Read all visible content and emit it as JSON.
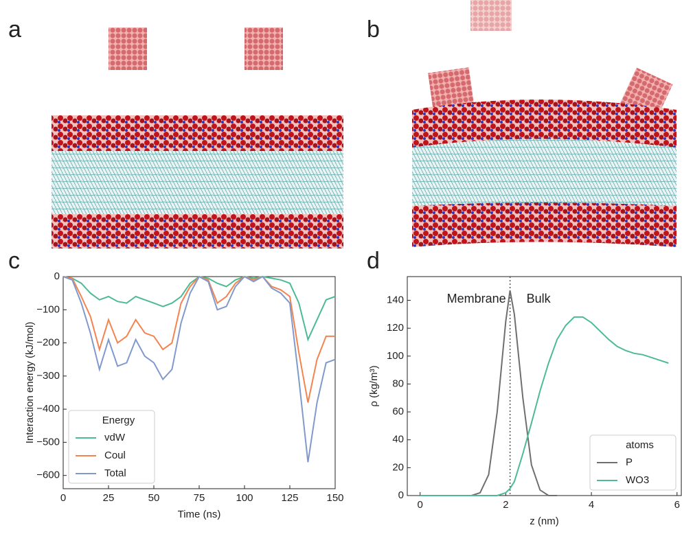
{
  "panels": [
    "a",
    "b",
    "c",
    "d"
  ],
  "chart_data": [
    {
      "type": "line",
      "x_label": "Time (ns)",
      "y_label": "Interaction energy (kJ/mol)",
      "x": [
        0,
        5,
        10,
        15,
        20,
        25,
        30,
        35,
        40,
        45,
        50,
        55,
        60,
        65,
        70,
        75,
        80,
        85,
        90,
        95,
        100,
        105,
        110,
        115,
        120,
        125,
        130,
        135,
        140,
        145,
        150
      ],
      "series": [
        {
          "name": "vdW",
          "color": "#4dbb92",
          "values": [
            0,
            -5,
            -20,
            -50,
            -70,
            -60,
            -75,
            -80,
            -60,
            -70,
            -80,
            -90,
            -80,
            -60,
            -20,
            0,
            -5,
            -20,
            -30,
            -10,
            0,
            -5,
            0,
            -5,
            -10,
            -20,
            -80,
            -190,
            -130,
            -70,
            -60
          ]
        },
        {
          "name": "Coul",
          "color": "#f4834f",
          "values": [
            0,
            -5,
            -60,
            -120,
            -220,
            -130,
            -200,
            -180,
            -130,
            -170,
            -180,
            -220,
            -200,
            -80,
            -30,
            0,
            -10,
            -80,
            -60,
            -20,
            0,
            -10,
            0,
            -30,
            -40,
            -60,
            -230,
            -380,
            -250,
            -180,
            -180
          ]
        },
        {
          "name": "Total",
          "color": "#8099cc",
          "values": [
            0,
            -10,
            -80,
            -170,
            -280,
            -190,
            -270,
            -260,
            -190,
            -240,
            -260,
            -310,
            -280,
            -140,
            -50,
            0,
            -15,
            -100,
            -90,
            -30,
            0,
            -15,
            0,
            -35,
            -50,
            -80,
            -310,
            -560,
            -380,
            -260,
            -250
          ]
        }
      ],
      "xlim": [
        0,
        150
      ],
      "xticks": [
        0,
        25,
        50,
        75,
        100,
        125,
        150
      ],
      "ylim": [
        -640,
        0
      ],
      "yticks": [
        0,
        {
          "value": -100,
          "label": "−100"
        },
        {
          "value": -200,
          "label": "−200"
        },
        {
          "value": -300,
          "label": "−300"
        },
        {
          "value": -400,
          "label": "−400"
        },
        {
          "value": -500,
          "label": "−500"
        },
        {
          "value": -600,
          "label": "−600"
        }
      ],
      "legend_title": "Energy",
      "legend": "lower left"
    },
    {
      "type": "line",
      "x_label": "z (nm)",
      "y_label": "ρ (kg/m³)",
      "annotations": [
        "Membrane",
        "Bulk"
      ],
      "vline": 2.1,
      "x": [
        0,
        0.4,
        0.8,
        1.2,
        1.4,
        1.6,
        1.8,
        2.0,
        2.1,
        2.2,
        2.4,
        2.6,
        2.8,
        3.0,
        3.2,
        3.4,
        3.6,
        3.8,
        4.0,
        4.2,
        4.4,
        4.6,
        4.8,
        5.0,
        5.2,
        5.4,
        5.6,
        5.8
      ],
      "series": [
        {
          "name": "P",
          "color": "#6e6e6e",
          "values": [
            0,
            0,
            0,
            0,
            2,
            15,
            60,
            125,
            147,
            130,
            70,
            22,
            4,
            0,
            0,
            null,
            null,
            null,
            null,
            null,
            null,
            null,
            null,
            null,
            null,
            null,
            null,
            null
          ]
        },
        {
          "name": "WO3",
          "color": "#4dbb92",
          "values": [
            0,
            0,
            0,
            0,
            0,
            0,
            0,
            2,
            5,
            10,
            30,
            52,
            75,
            95,
            112,
            122,
            128,
            128,
            124,
            118,
            112,
            107,
            104,
            102,
            101,
            99,
            97,
            95
          ]
        }
      ],
      "xlim": [
        -0.3,
        6.1
      ],
      "xticks": [
        0,
        2,
        4,
        6
      ],
      "ylim": [
        0,
        157
      ],
      "yticks": [
        0,
        20,
        40,
        60,
        80,
        100,
        120,
        140
      ],
      "legend_title": "atoms",
      "legend": "lower right"
    }
  ]
}
